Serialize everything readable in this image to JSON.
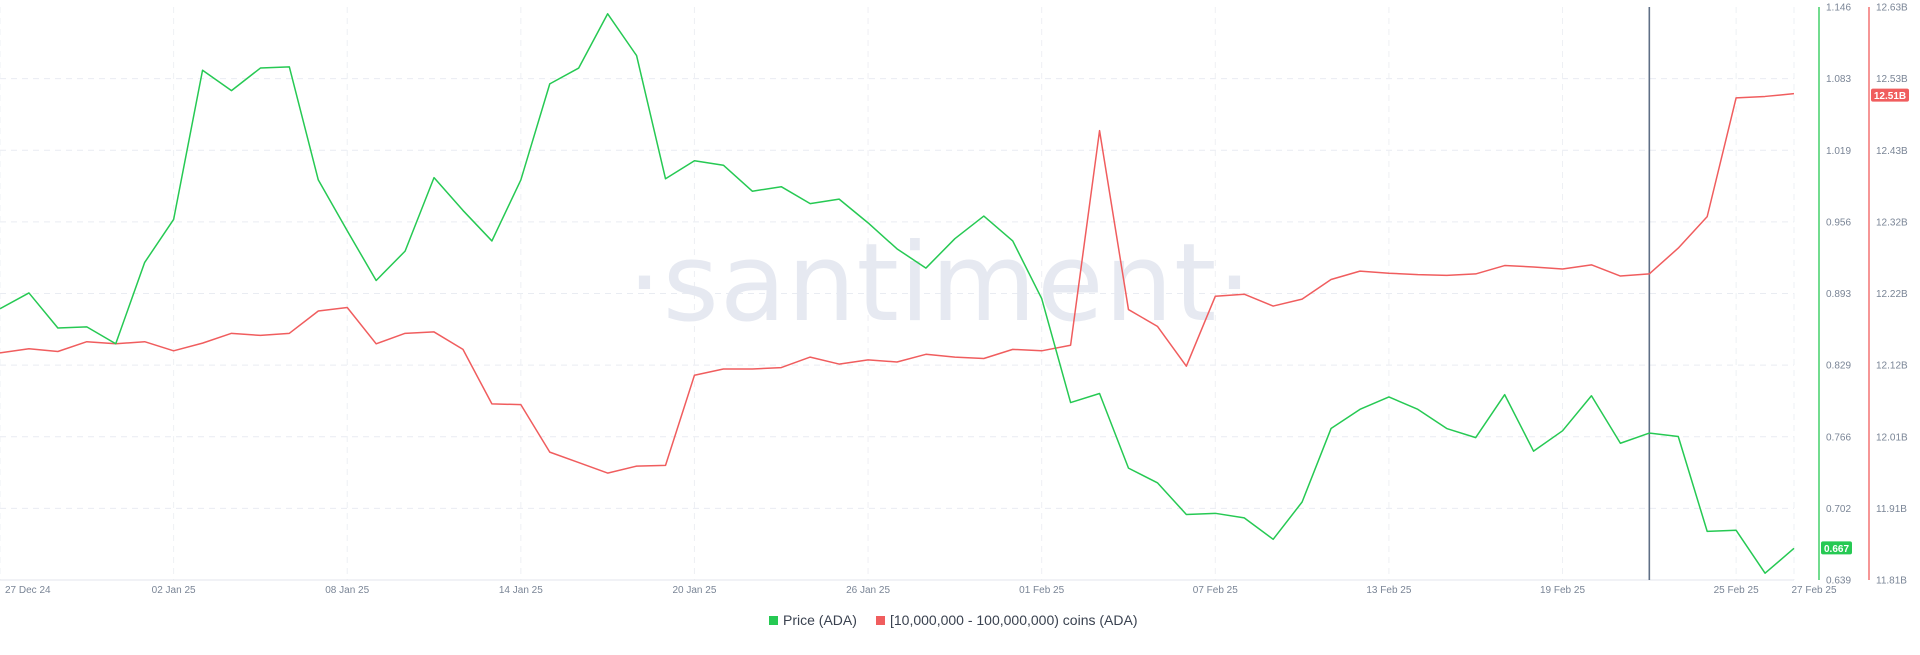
{
  "chart_data": {
    "type": "line",
    "watermark": "·santiment·",
    "x": [
      "27 Dec 24",
      "28 Dec 24",
      "29 Dec 24",
      "30 Dec 24",
      "31 Dec 24",
      "01 Jan 25",
      "02 Jan 25",
      "03 Jan 25",
      "04 Jan 25",
      "05 Jan 25",
      "06 Jan 25",
      "07 Jan 25",
      "08 Jan 25",
      "09 Jan 25",
      "10 Jan 25",
      "11 Jan 25",
      "12 Jan 25",
      "13 Jan 25",
      "14 Jan 25",
      "15 Jan 25",
      "16 Jan 25",
      "17 Jan 25",
      "18 Jan 25",
      "19 Jan 25",
      "20 Jan 25",
      "21 Jan 25",
      "22 Jan 25",
      "23 Jan 25",
      "24 Jan 25",
      "25 Jan 25",
      "26 Jan 25",
      "27 Jan 25",
      "28 Jan 25",
      "29 Jan 25",
      "30 Jan 25",
      "31 Jan 25",
      "01 Feb 25",
      "02 Feb 25",
      "03 Feb 25",
      "04 Feb 25",
      "05 Feb 25",
      "06 Feb 25",
      "07 Feb 25",
      "08 Feb 25",
      "09 Feb 25",
      "10 Feb 25",
      "11 Feb 25",
      "12 Feb 25",
      "13 Feb 25",
      "14 Feb 25",
      "15 Feb 25",
      "16 Feb 25",
      "17 Feb 25",
      "18 Feb 25",
      "19 Feb 25",
      "20 Feb 25",
      "21 Feb 25",
      "22 Feb 25",
      "23 Feb 25",
      "24 Feb 25",
      "25 Feb 25",
      "26 Feb 25",
      "27 Feb 25"
    ],
    "x_ticks": [
      "27 Dec 24",
      "02 Jan 25",
      "08 Jan 25",
      "14 Jan 25",
      "20 Jan 25",
      "26 Jan 25",
      "01 Feb 25",
      "07 Feb 25",
      "13 Feb 25",
      "19 Feb 25",
      "25 Feb 25",
      "27 Feb 25"
    ],
    "series": [
      {
        "name": "Price (ADA)",
        "axis": "left",
        "color": "#26c953",
        "values": [
          0.879,
          0.893,
          0.862,
          0.863,
          0.848,
          0.92,
          0.958,
          1.09,
          1.072,
          1.092,
          1.093,
          0.993,
          0.948,
          0.904,
          0.93,
          0.995,
          0.966,
          0.939,
          0.993,
          1.078,
          1.092,
          1.14,
          1.103,
          0.994,
          1.01,
          1.006,
          0.983,
          0.987,
          0.972,
          0.976,
          0.955,
          0.932,
          0.915,
          0.941,
          0.961,
          0.939,
          0.888,
          0.796,
          0.804,
          0.738,
          0.725,
          0.697,
          0.698,
          0.694,
          0.675,
          0.708,
          0.773,
          0.79,
          0.801,
          0.79,
          0.773,
          0.765,
          0.803,
          0.753,
          0.771,
          0.802,
          0.76,
          0.769,
          0.766,
          0.682,
          0.683,
          0.645,
          0.667
        ]
      },
      {
        "name": "[10,000,000 - 100,000,000) coins (ADA)",
        "axis": "right",
        "color": "#f05d5e",
        "values": [
          12.135,
          12.141,
          12.137,
          12.151,
          12.148,
          12.151,
          12.138,
          12.149,
          12.163,
          12.16,
          12.163,
          12.195,
          12.2,
          12.148,
          12.163,
          12.165,
          12.14,
          12.062,
          12.061,
          11.993,
          11.978,
          11.963,
          11.973,
          11.974,
          12.103,
          12.112,
          12.112,
          12.114,
          12.129,
          12.119,
          12.125,
          12.122,
          12.133,
          12.129,
          12.127,
          12.14,
          12.138,
          12.146,
          12.453,
          12.197,
          12.173,
          12.116,
          12.216,
          12.219,
          12.202,
          12.212,
          12.24,
          12.252,
          12.249,
          12.247,
          12.246,
          12.248,
          12.26,
          12.258,
          12.255,
          12.261,
          12.245,
          12.248,
          12.285,
          12.33,
          12.5,
          12.502,
          12.506
        ]
      }
    ],
    "y_left": {
      "ticks": [
        "1.146",
        "1.083",
        "1.019",
        "0.956",
        "0.893",
        "0.829",
        "0.766",
        "0.702",
        "0.639"
      ],
      "range": [
        0.639,
        1.146
      ],
      "current_label": "0.667",
      "current_color": "#26c953"
    },
    "y_right": {
      "ticks": [
        "12.63B",
        "12.53B",
        "12.43B",
        "12.32B",
        "12.22B",
        "12.12B",
        "12.01B",
        "11.91B",
        "11.81B"
      ],
      "range": [
        11.81,
        12.63
      ],
      "current_label": "12.51B",
      "current_color": "#f05d5e"
    },
    "marker_date": "22 Feb 25",
    "grid": true,
    "legend": [
      {
        "label": "Price (ADA)",
        "color": "#26c953"
      },
      {
        "label": "[10,000,000 - 100,000,000) coins (ADA)",
        "color": "#f05d5e"
      }
    ],
    "legend_position": "bottom-center"
  }
}
